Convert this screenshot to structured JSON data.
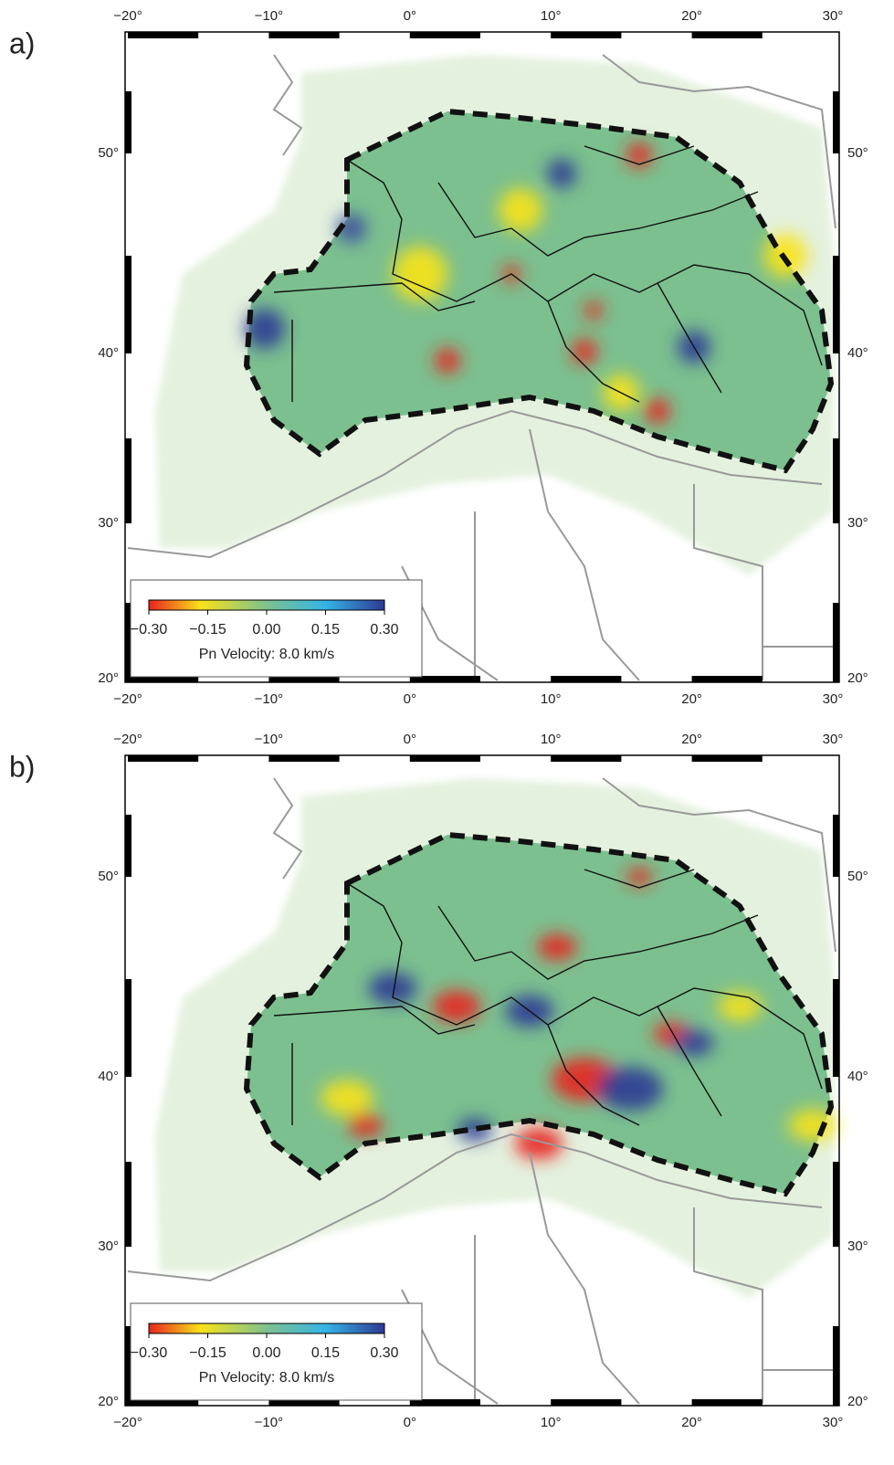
{
  "panels": [
    {
      "label": "a)",
      "lon_ticks": [
        "−20°",
        "−10°",
        "0°",
        "10°",
        "20°",
        "30°"
      ],
      "lat_ticks": [
        "50°",
        "40°",
        "30°",
        "20°"
      ],
      "colorbar": {
        "ticks": [
          "−0.30",
          "−0.15",
          "0.00",
          "0.15",
          "0.30"
        ],
        "label": "Pn Velocity: 8.0 km/s"
      }
    },
    {
      "label": "b)",
      "lon_ticks": [
        "−20°",
        "−10°",
        "0°",
        "10°",
        "20°",
        "30°"
      ],
      "lat_ticks": [
        "50°",
        "40°",
        "30°",
        "20°"
      ],
      "colorbar": {
        "ticks": [
          "−0.30",
          "−0.15",
          "0.00",
          "0.15",
          "0.30"
        ],
        "label": "Pn Velocity: 8.0 km/s"
      }
    }
  ]
}
